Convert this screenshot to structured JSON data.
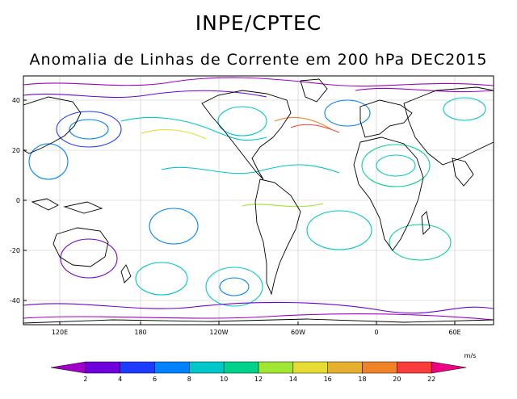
{
  "header": {
    "organization": "INPE/CPTEC",
    "subtitle": "Anomalia de Linhas de Corrente em 200 hPa DEC2015"
  },
  "map": {
    "lat_ticks": [
      "40",
      "20",
      "0",
      "-20",
      "-40"
    ],
    "lon_ticks": [
      "120E",
      "180",
      "120W",
      "60W",
      "0",
      "60E"
    ]
  },
  "colorbar": {
    "unit": "m/s",
    "labels": [
      "2",
      "4",
      "6",
      "8",
      "10",
      "12",
      "14",
      "16",
      "18",
      "20",
      "22"
    ],
    "colors": [
      "#a000c8",
      "#6e00dc",
      "#1e3cff",
      "#0082ff",
      "#00c8c8",
      "#00d28c",
      "#a0e632",
      "#e6dc32",
      "#e6af2d",
      "#f08228",
      "#fa3c3c",
      "#f00082"
    ]
  }
}
